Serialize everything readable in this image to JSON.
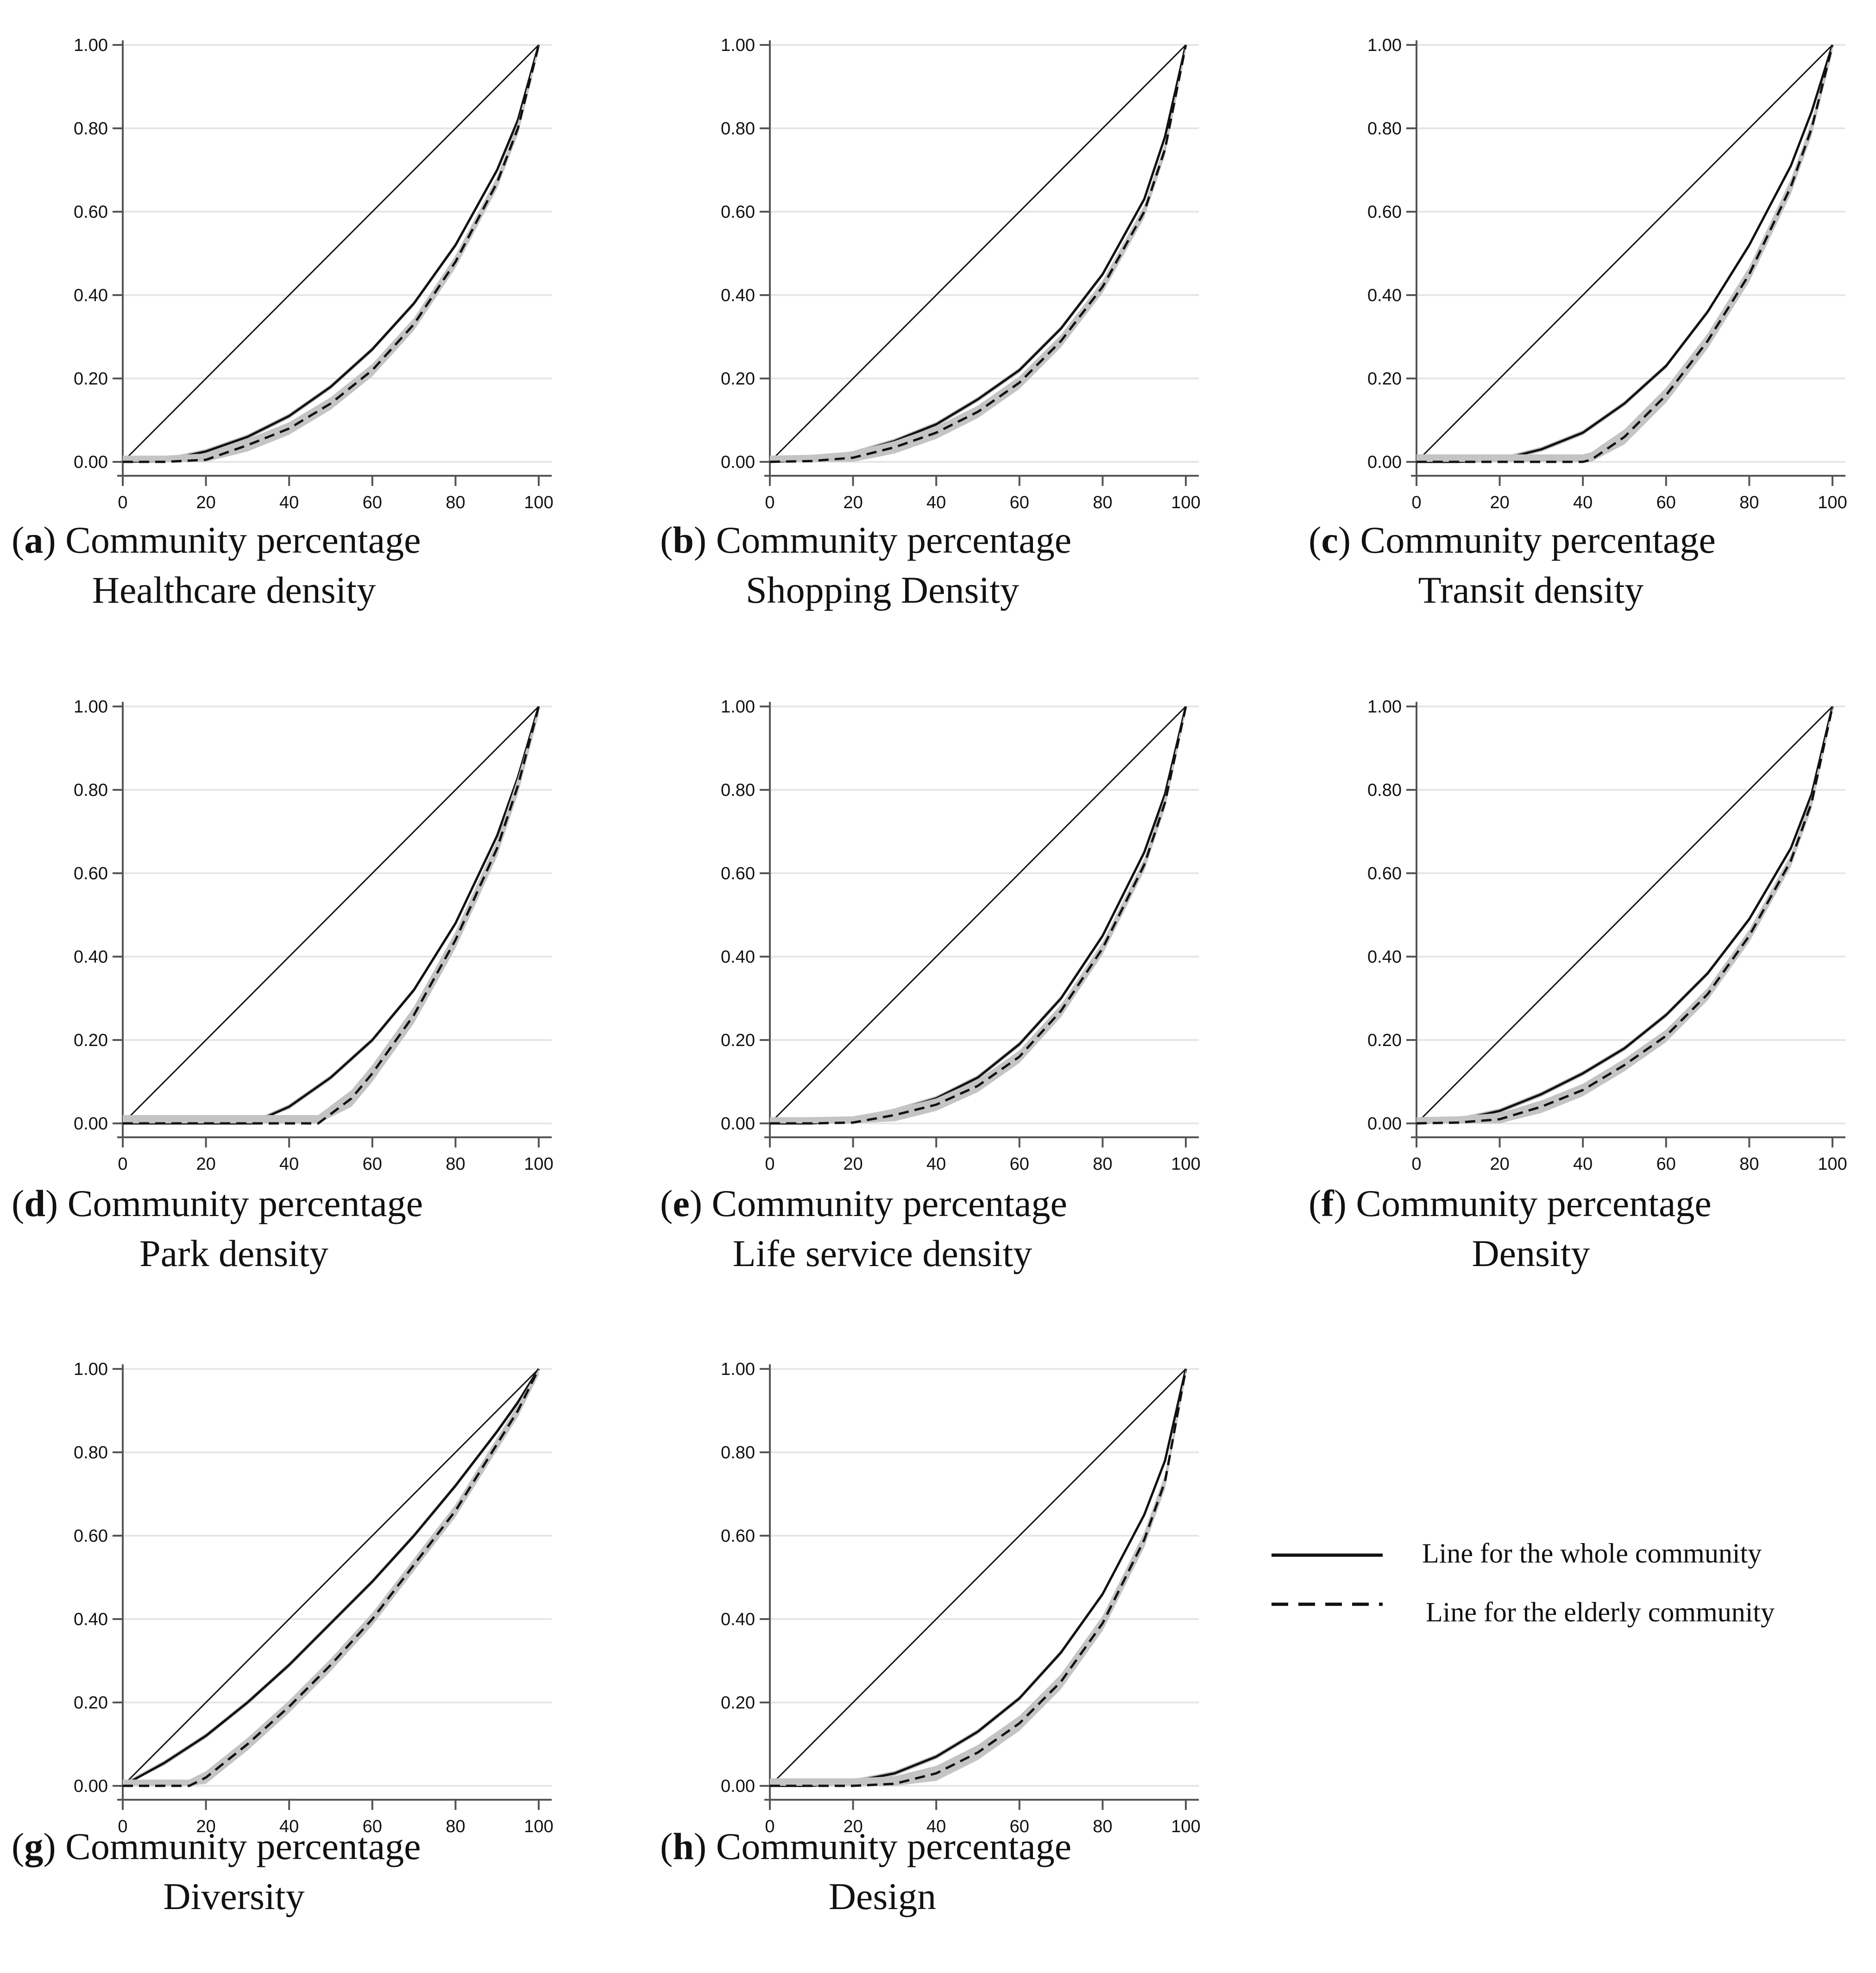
{
  "colors": {
    "axis": "#555555",
    "grid": "#e6e6e6",
    "line": "#111111",
    "band": "#c4c4c4",
    "text": "#111111"
  },
  "legend": {
    "whole": "Line for the whole community",
    "elderly": "Line for the elderly community"
  },
  "chart_data": [
    {
      "id": "a",
      "type": "line",
      "caption_letter": "a",
      "caption_line1": "Community percentage",
      "caption_line2": "Healthcare density",
      "xlim": [
        0,
        100
      ],
      "ylim": [
        0,
        1
      ],
      "xticks": [
        "0",
        "20",
        "40",
        "60",
        "80",
        "100"
      ],
      "yticks": [
        "0.00",
        "0.20",
        "0.40",
        "0.60",
        "0.80",
        "1.00"
      ],
      "series": [
        {
          "name": "Equality line",
          "style": "thin",
          "x": [
            0,
            100
          ],
          "y": [
            0,
            1
          ]
        },
        {
          "name": "Line for the whole community",
          "style": "solid",
          "band": 0.006,
          "x": [
            0,
            10,
            20,
            30,
            40,
            50,
            60,
            70,
            80,
            90,
            95,
            100
          ],
          "y": [
            0,
            0.003,
            0.025,
            0.06,
            0.11,
            0.18,
            0.27,
            0.38,
            0.52,
            0.7,
            0.82,
            1.0
          ]
        },
        {
          "name": "Line for the elderly community",
          "style": "dashed",
          "band": 0.015,
          "x": [
            0,
            10,
            20,
            30,
            40,
            50,
            60,
            70,
            80,
            90,
            95,
            100
          ],
          "y": [
            0,
            0,
            0.005,
            0.04,
            0.08,
            0.14,
            0.22,
            0.33,
            0.48,
            0.67,
            0.8,
            1.0
          ]
        }
      ]
    },
    {
      "id": "b",
      "type": "line",
      "caption_letter": "b",
      "caption_line1": "Community percentage",
      "caption_line2": "Shopping Density",
      "xlim": [
        0,
        100
      ],
      "ylim": [
        0,
        1
      ],
      "xticks": [
        "0",
        "20",
        "40",
        "60",
        "80",
        "100"
      ],
      "yticks": [
        "0.00",
        "0.20",
        "0.40",
        "0.60",
        "0.80",
        "1.00"
      ],
      "series": [
        {
          "name": "Equality line",
          "style": "thin",
          "x": [
            0,
            100
          ],
          "y": [
            0,
            1
          ]
        },
        {
          "name": "Line for the whole community",
          "style": "solid",
          "band": 0.006,
          "x": [
            0,
            10,
            20,
            30,
            40,
            50,
            60,
            70,
            80,
            90,
            95,
            100
          ],
          "y": [
            0,
            0.005,
            0.02,
            0.05,
            0.09,
            0.15,
            0.22,
            0.32,
            0.45,
            0.63,
            0.78,
            1.0
          ]
        },
        {
          "name": "Line for the elderly community",
          "style": "dashed",
          "band": 0.015,
          "x": [
            0,
            10,
            20,
            30,
            40,
            50,
            60,
            70,
            80,
            90,
            95,
            100
          ],
          "y": [
            0,
            0.002,
            0.01,
            0.035,
            0.07,
            0.12,
            0.19,
            0.29,
            0.42,
            0.6,
            0.75,
            1.0
          ]
        }
      ]
    },
    {
      "id": "c",
      "type": "line",
      "caption_letter": "c",
      "caption_line1": "Community percentage",
      "caption_line2": "Transit density",
      "xlim": [
        0,
        100
      ],
      "ylim": [
        0,
        1
      ],
      "xticks": [
        "0",
        "20",
        "40",
        "60",
        "80",
        "100"
      ],
      "yticks": [
        "0.00",
        "0.20",
        "0.40",
        "0.60",
        "0.80",
        "1.00"
      ],
      "series": [
        {
          "name": "Equality line",
          "style": "thin",
          "x": [
            0,
            100
          ],
          "y": [
            0,
            1
          ]
        },
        {
          "name": "Line for the whole community",
          "style": "solid",
          "band": 0.006,
          "x": [
            0,
            10,
            20,
            30,
            40,
            50,
            60,
            70,
            80,
            90,
            95,
            100
          ],
          "y": [
            0,
            0,
            0.005,
            0.03,
            0.07,
            0.14,
            0.23,
            0.36,
            0.52,
            0.71,
            0.84,
            1.0
          ]
        },
        {
          "name": "Line for the elderly community",
          "style": "dashed",
          "band": 0.018,
          "x": [
            0,
            10,
            20,
            30,
            40,
            42,
            50,
            60,
            70,
            80,
            90,
            95,
            100
          ],
          "y": [
            0,
            0,
            0,
            0,
            0,
            0.005,
            0.06,
            0.16,
            0.29,
            0.45,
            0.66,
            0.8,
            1.0
          ]
        }
      ]
    },
    {
      "id": "d",
      "type": "line",
      "caption_letter": "d",
      "caption_line1": "Community percentage",
      "caption_line2": "Park density",
      "xlim": [
        0,
        100
      ],
      "ylim": [
        0,
        1
      ],
      "xticks": [
        "0",
        "20",
        "40",
        "60",
        "80",
        "100"
      ],
      "yticks": [
        "0.00",
        "0.20",
        "0.40",
        "0.60",
        "0.80",
        "1.00"
      ],
      "series": [
        {
          "name": "Equality line",
          "style": "thin",
          "x": [
            0,
            100
          ],
          "y": [
            0,
            1
          ]
        },
        {
          "name": "Line for the whole community",
          "style": "solid",
          "band": 0.006,
          "x": [
            0,
            10,
            20,
            31,
            40,
            50,
            60,
            70,
            80,
            90,
            95,
            100
          ],
          "y": [
            0,
            0,
            0,
            0,
            0.04,
            0.11,
            0.2,
            0.32,
            0.48,
            0.69,
            0.83,
            1.0
          ]
        },
        {
          "name": "Line for the elderly community",
          "style": "dashed",
          "band": 0.02,
          "x": [
            0,
            10,
            20,
            30,
            40,
            47,
            55,
            60,
            70,
            80,
            90,
            95,
            100
          ],
          "y": [
            0,
            0,
            0,
            0,
            0,
            0,
            0.06,
            0.12,
            0.26,
            0.44,
            0.66,
            0.81,
            1.0
          ]
        }
      ]
    },
    {
      "id": "e",
      "type": "line",
      "caption_letter": "e",
      "caption_line1": "Community percentage",
      "caption_line2": "Life service density",
      "xlim": [
        0,
        100
      ],
      "ylim": [
        0,
        1
      ],
      "xticks": [
        "0",
        "20",
        "40",
        "60",
        "80",
        "100"
      ],
      "yticks": [
        "0.00",
        "0.20",
        "0.40",
        "0.60",
        "0.80",
        "1.00"
      ],
      "series": [
        {
          "name": "Equality line",
          "style": "thin",
          "x": [
            0,
            100
          ],
          "y": [
            0,
            1
          ]
        },
        {
          "name": "Line for the whole community",
          "style": "solid",
          "band": 0.006,
          "x": [
            0,
            10,
            20,
            30,
            40,
            50,
            60,
            70,
            80,
            90,
            95,
            100
          ],
          "y": [
            0,
            0,
            0.008,
            0.03,
            0.06,
            0.11,
            0.19,
            0.3,
            0.45,
            0.65,
            0.79,
            1.0
          ]
        },
        {
          "name": "Line for the elderly community",
          "style": "dashed",
          "band": 0.015,
          "x": [
            0,
            10,
            20,
            30,
            40,
            50,
            60,
            70,
            80,
            90,
            95,
            100
          ],
          "y": [
            0,
            0,
            0.002,
            0.02,
            0.045,
            0.09,
            0.16,
            0.27,
            0.42,
            0.62,
            0.77,
            1.0
          ]
        }
      ]
    },
    {
      "id": "f",
      "type": "line",
      "caption_letter": "f",
      "caption_line1": "Community percentage",
      "caption_line2": "Density",
      "xlim": [
        0,
        100
      ],
      "ylim": [
        0,
        1
      ],
      "xticks": [
        "0",
        "20",
        "40",
        "60",
        "80",
        "100"
      ],
      "yticks": [
        "0.00",
        "0.20",
        "0.40",
        "0.60",
        "0.80",
        "1.00"
      ],
      "series": [
        {
          "name": "Equality line",
          "style": "thin",
          "x": [
            0,
            100
          ],
          "y": [
            0,
            1
          ]
        },
        {
          "name": "Line for the whole community",
          "style": "solid",
          "band": 0.006,
          "x": [
            0,
            10,
            20,
            30,
            40,
            50,
            60,
            70,
            80,
            90,
            95,
            100
          ],
          "y": [
            0,
            0.008,
            0.03,
            0.07,
            0.12,
            0.18,
            0.26,
            0.36,
            0.49,
            0.66,
            0.79,
            1.0
          ]
        },
        {
          "name": "Line for the elderly community",
          "style": "dashed",
          "band": 0.015,
          "x": [
            0,
            10,
            20,
            30,
            40,
            50,
            60,
            70,
            80,
            90,
            95,
            100
          ],
          "y": [
            0,
            0.002,
            0.01,
            0.04,
            0.08,
            0.14,
            0.21,
            0.31,
            0.45,
            0.63,
            0.77,
            1.0
          ]
        }
      ]
    },
    {
      "id": "g",
      "type": "line",
      "caption_letter": "g",
      "caption_line1": "Community percentage",
      "caption_line2": "Diversity",
      "xlim": [
        0,
        100
      ],
      "ylim": [
        0,
        1
      ],
      "xticks": [
        "0",
        "20",
        "40",
        "60",
        "80",
        "100"
      ],
      "yticks": [
        "0.00",
        "0.20",
        "0.40",
        "0.60",
        "0.80",
        "1.00"
      ],
      "series": [
        {
          "name": "Equality line",
          "style": "thin",
          "x": [
            0,
            100
          ],
          "y": [
            0,
            1
          ]
        },
        {
          "name": "Line for the whole community",
          "style": "solid",
          "band": 0.006,
          "x": [
            0,
            10,
            20,
            30,
            40,
            50,
            60,
            70,
            80,
            90,
            95,
            100
          ],
          "y": [
            0,
            0.055,
            0.12,
            0.2,
            0.29,
            0.39,
            0.49,
            0.6,
            0.72,
            0.85,
            0.92,
            1.0
          ]
        },
        {
          "name": "Line for the elderly community",
          "style": "dashed",
          "band": 0.015,
          "x": [
            0,
            10,
            16,
            20,
            30,
            40,
            50,
            60,
            70,
            80,
            90,
            95,
            100
          ],
          "y": [
            0,
            0,
            0,
            0.02,
            0.1,
            0.19,
            0.29,
            0.4,
            0.53,
            0.66,
            0.82,
            0.9,
            1.0
          ]
        }
      ]
    },
    {
      "id": "h",
      "type": "line",
      "caption_letter": "h",
      "caption_line1": "Community percentage",
      "caption_line2": "Design",
      "xlim": [
        0,
        100
      ],
      "ylim": [
        0,
        1
      ],
      "xticks": [
        "0",
        "20",
        "40",
        "60",
        "80",
        "100"
      ],
      "yticks": [
        "0.00",
        "0.20",
        "0.40",
        "0.60",
        "0.80",
        "1.00"
      ],
      "series": [
        {
          "name": "Equality line",
          "style": "thin",
          "x": [
            0,
            100
          ],
          "y": [
            0,
            1
          ]
        },
        {
          "name": "Line for the whole community",
          "style": "solid",
          "band": 0.006,
          "x": [
            0,
            10,
            20,
            30,
            40,
            50,
            60,
            70,
            80,
            90,
            95,
            100
          ],
          "y": [
            0,
            0,
            0.01,
            0.03,
            0.07,
            0.13,
            0.21,
            0.32,
            0.46,
            0.65,
            0.78,
            1.0
          ]
        },
        {
          "name": "Line for the elderly community",
          "style": "dashed",
          "band": 0.018,
          "x": [
            0,
            10,
            20,
            30,
            40,
            50,
            60,
            70,
            80,
            90,
            95,
            100
          ],
          "y": [
            0,
            0,
            0,
            0.005,
            0.03,
            0.08,
            0.15,
            0.25,
            0.39,
            0.59,
            0.73,
            1.0
          ]
        }
      ]
    }
  ]
}
